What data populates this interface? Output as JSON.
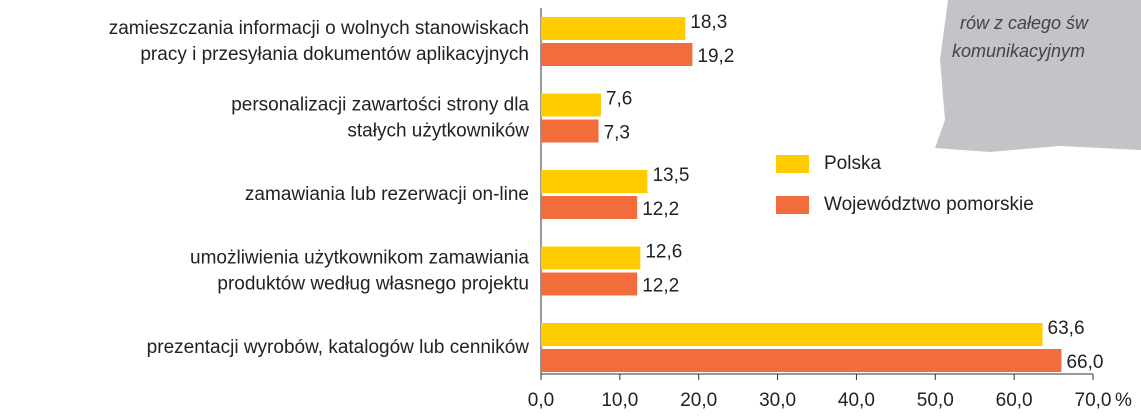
{
  "chart_data": {
    "type": "barh",
    "categories": [
      [
        "zamieszczania informacji o wolnych stanowiskach",
        "pracy i przesyłania dokumentów aplikacyjnych"
      ],
      [
        "personalizacji zawartości strony dla",
        "stałych użytkowników"
      ],
      [
        "zamawiania lub rezerwacji on-line"
      ],
      [
        "umożliwienia użytkownikom zamawiania",
        "produktów według własnego projektu"
      ],
      [
        "prezentacji wyrobów, katalogów lub cenników"
      ]
    ],
    "series": [
      {
        "name": "Polska",
        "color": "#ffcc00",
        "values": [
          18.3,
          7.6,
          13.5,
          12.6,
          63.6
        ],
        "value_labels": [
          "18,3",
          "7,6",
          "13,5",
          "12,6",
          "63,6"
        ]
      },
      {
        "name": "Województwo pomorskie",
        "color": "#f26d3b",
        "values": [
          19.2,
          7.3,
          12.2,
          12.2,
          66.0
        ],
        "value_labels": [
          "19,2",
          "7,3",
          "12,2",
          "12,2",
          "66,0"
        ]
      }
    ],
    "xlim": [
      0,
      70
    ],
    "xticks": [
      {
        "value": 0,
        "label": "0,0"
      },
      {
        "value": 10,
        "label": "10,0"
      },
      {
        "value": 20,
        "label": "20,0"
      },
      {
        "value": 30,
        "label": "30,0"
      },
      {
        "value": 40,
        "label": "40,0"
      },
      {
        "value": 50,
        "label": "50,0"
      },
      {
        "value": 60,
        "label": "60,0"
      },
      {
        "value": 70,
        "label": "70,0"
      }
    ],
    "x_label": "%",
    "annotation": [
      "rów z całego św",
      "komunikacyjnym"
    ]
  }
}
